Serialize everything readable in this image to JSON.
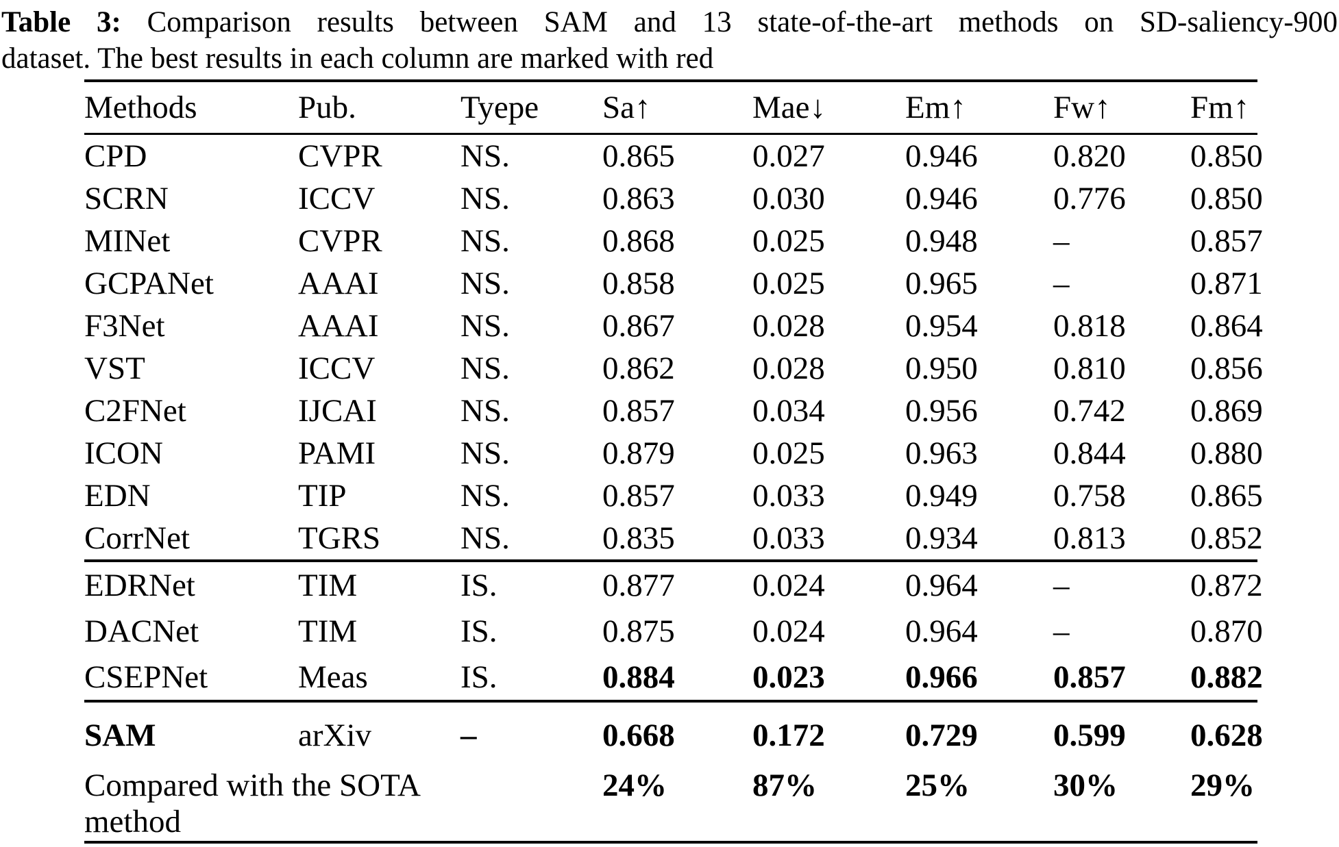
{
  "caption": {
    "label": "Table 3:",
    "line1_rest": "Comparison results between SAM and 13 state-of-the-art methods on SD-saliency-900",
    "line2": "dataset. The best results in each column are marked with red"
  },
  "colors": {
    "text": "#000000",
    "background": "#ffffff"
  },
  "table": {
    "columns": [
      "Methods",
      "Pub.",
      "Tyepe",
      "Sa↑",
      "Mae↓",
      "Em↑",
      "Fw↑",
      "Fm↑"
    ],
    "column_keys": [
      "methods",
      "pub",
      "type",
      "sa",
      "mae",
      "em",
      "fw",
      "fm"
    ],
    "groups": [
      {
        "name": "non-saliency-methods",
        "rows": [
          {
            "cells": [
              "CPD",
              "CVPR",
              "NS.",
              "0.865",
              "0.027",
              "0.946",
              "0.820",
              "0.850"
            ],
            "bold": []
          },
          {
            "cells": [
              "SCRN",
              "ICCV",
              "NS.",
              "0.863",
              "0.030",
              "0.946",
              "0.776",
              "0.850"
            ],
            "bold": []
          },
          {
            "cells": [
              "MINet",
              "CVPR",
              "NS.",
              "0.868",
              "0.025",
              "0.948",
              "–",
              "0.857"
            ],
            "bold": []
          },
          {
            "cells": [
              "GCPANet",
              "AAAI",
              "NS.",
              "0.858",
              "0.025",
              "0.965",
              "–",
              "0.871"
            ],
            "bold": []
          },
          {
            "cells": [
              "F3Net",
              "AAAI",
              "NS.",
              "0.867",
              "0.028",
              "0.954",
              "0.818",
              "0.864"
            ],
            "bold": []
          },
          {
            "cells": [
              "VST",
              "ICCV",
              "NS.",
              "0.862",
              "0.028",
              "0.950",
              "0.810",
              "0.856"
            ],
            "bold": []
          },
          {
            "cells": [
              "C2FNet",
              "IJCAI",
              "NS.",
              "0.857",
              "0.034",
              "0.956",
              "0.742",
              "0.869"
            ],
            "bold": []
          },
          {
            "cells": [
              "ICON",
              "PAMI",
              "NS.",
              "0.879",
              "0.025",
              "0.963",
              "0.844",
              "0.880"
            ],
            "bold": []
          },
          {
            "cells": [
              "EDN",
              "TIP",
              "NS.",
              "0.857",
              "0.033",
              "0.949",
              "0.758",
              "0.865"
            ],
            "bold": []
          },
          {
            "cells": [
              "CorrNet",
              "TGRS",
              "NS.",
              "0.835",
              "0.033",
              "0.934",
              "0.813",
              "0.852"
            ],
            "bold": []
          }
        ]
      },
      {
        "name": "industrial-saliency-methods",
        "rows": [
          {
            "cells": [
              "EDRNet",
              "TIM",
              "IS.",
              "0.877",
              "0.024",
              "0.964",
              "–",
              "0.872"
            ],
            "bold": []
          },
          {
            "cells": [
              "DACNet",
              "TIM",
              "IS.",
              "0.875",
              "0.024",
              "0.964",
              "–",
              "0.870"
            ],
            "bold": []
          },
          {
            "cells": [
              "CSEPNet",
              "Meas",
              "IS.",
              "0.884",
              "0.023",
              "0.966",
              "0.857",
              "0.882"
            ],
            "bold": [
              3,
              4,
              5,
              6,
              7
            ]
          }
        ]
      },
      {
        "name": "sam-comparison",
        "rows": [
          {
            "type": "sam",
            "cells": [
              "SAM",
              "arXiv",
              "–",
              "0.668",
              "0.172",
              "0.729",
              "0.599",
              "0.628"
            ],
            "bold": [
              0,
              2,
              3,
              4,
              5,
              6,
              7
            ]
          },
          {
            "type": "compare",
            "label": "Compared with the SOTA method",
            "cells": [
              "",
              "",
              "",
              "24%",
              "87%",
              "25%",
              "30%",
              "29%"
            ],
            "bold": [
              3,
              4,
              5,
              6,
              7
            ]
          }
        ]
      }
    ]
  }
}
